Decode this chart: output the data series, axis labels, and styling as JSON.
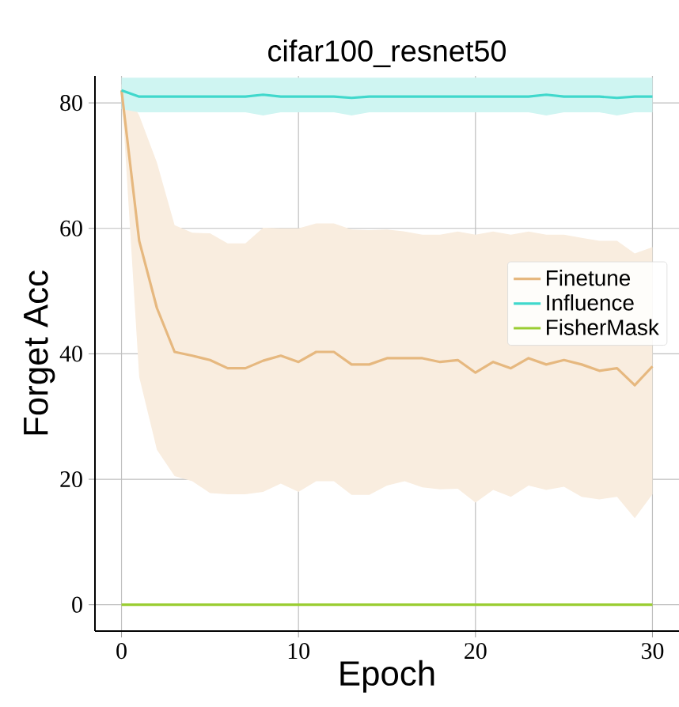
{
  "chart_data": {
    "type": "line",
    "title": "cifar100_resnet50",
    "xlabel": "Epoch",
    "ylabel": "Forget Acc",
    "x": [
      0,
      1,
      2,
      3,
      4,
      5,
      6,
      7,
      8,
      9,
      10,
      11,
      12,
      13,
      14,
      15,
      16,
      17,
      18,
      19,
      20,
      21,
      22,
      23,
      24,
      25,
      26,
      27,
      28,
      29,
      30
    ],
    "series": [
      {
        "name": "Finetune",
        "color": "#e6b87f",
        "values": [
          82,
          58,
          47.3,
          40.3,
          39.7,
          39,
          37.7,
          37.7,
          38.9,
          39.7,
          38.7,
          40.3,
          40.3,
          38.3,
          38.3,
          39.3,
          39.3,
          39.3,
          38.7,
          39,
          37,
          38.7,
          37.7,
          39.3,
          38.3,
          39,
          38.3,
          37.3,
          37.7,
          35,
          38
        ],
        "lower": [
          82,
          36.3,
          24.7,
          20.5,
          19.7,
          17.8,
          17.6,
          17.6,
          18,
          19.3,
          18,
          19.7,
          19.7,
          17.5,
          17.5,
          19,
          19.7,
          18.7,
          18.4,
          18.5,
          16.3,
          18.3,
          17.2,
          19,
          18.3,
          18.8,
          17.2,
          16.8,
          17.2,
          13.8,
          17.6
        ],
        "upper": [
          83,
          78,
          70.5,
          60.5,
          59.3,
          59.2,
          57.6,
          57.6,
          60.1,
          60,
          60,
          60.8,
          60.8,
          59.8,
          59.7,
          59.8,
          59.5,
          59,
          59,
          59.5,
          59,
          59.5,
          59,
          59.5,
          59,
          59,
          58.5,
          58,
          58,
          56,
          57
        ]
      },
      {
        "name": "Influence",
        "color": "#40d8cc",
        "values": [
          82,
          81,
          81,
          81,
          81,
          81,
          81,
          81,
          81.3,
          81,
          81,
          81,
          81,
          80.8,
          81,
          81,
          81,
          81,
          81,
          81,
          81,
          81,
          81,
          81,
          81.3,
          81,
          81,
          81,
          80.8,
          81,
          81
        ],
        "lower": [
          79,
          78.5,
          78.5,
          78.5,
          78.5,
          78.5,
          78.5,
          78.5,
          78,
          78.5,
          78.5,
          78.5,
          78.5,
          78,
          78.5,
          78.5,
          78.5,
          78.5,
          78.5,
          78.5,
          78.5,
          78.5,
          78.5,
          78.5,
          78,
          78.5,
          78.5,
          78.5,
          78,
          78.5,
          78.5
        ],
        "upper": [
          84,
          84,
          84,
          84,
          84,
          84,
          84,
          84,
          84,
          84,
          84,
          84,
          84,
          84,
          84,
          84,
          84,
          84,
          84,
          84,
          84,
          84,
          84,
          84,
          84,
          84,
          84,
          84,
          84,
          84,
          84
        ]
      },
      {
        "name": "FisherMask",
        "color": "#9acd32",
        "values": [
          0,
          0,
          0,
          0,
          0,
          0,
          0,
          0,
          0,
          0,
          0,
          0,
          0,
          0,
          0,
          0,
          0,
          0,
          0,
          0,
          0,
          0,
          0,
          0,
          0,
          0,
          0,
          0,
          0,
          0,
          0
        ]
      }
    ],
    "xlim": [
      -1.5,
      31.5
    ],
    "ylim": [
      -4.2,
      84.3
    ],
    "xticks": [
      0,
      10,
      20,
      30
    ],
    "yticks": [
      0,
      20,
      40,
      60,
      80
    ],
    "grid": true,
    "legend": "center right",
    "marker": "none",
    "line_style": "solid"
  }
}
